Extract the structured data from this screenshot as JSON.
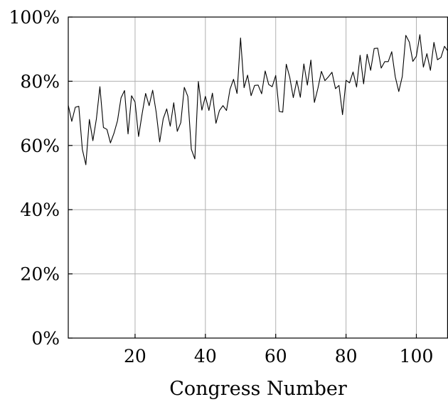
{
  "chart_data": {
    "type": "line",
    "title": "",
    "xlabel": "Congress Number",
    "ylabel": "",
    "xlim": [
      1,
      109
    ],
    "ylim": [
      0,
      100
    ],
    "grid": true,
    "x_ticks": [
      {
        "value": 20,
        "label": "20"
      },
      {
        "value": 40,
        "label": "40"
      },
      {
        "value": 60,
        "label": "60"
      },
      {
        "value": 80,
        "label": "80"
      },
      {
        "value": 100,
        "label": "100"
      }
    ],
    "y_ticks": [
      {
        "value": 0,
        "label": "0%"
      },
      {
        "value": 20,
        "label": "20%"
      },
      {
        "value": 40,
        "label": "40%"
      },
      {
        "value": 60,
        "label": "60%"
      },
      {
        "value": 80,
        "label": "80%"
      },
      {
        "value": 100,
        "label": "100%"
      }
    ],
    "series": [
      {
        "line_color": "#000000",
        "x": [
          1,
          2,
          3,
          4,
          5,
          6,
          7,
          8,
          9,
          10,
          11,
          12,
          13,
          14,
          15,
          16,
          17,
          18,
          19,
          20,
          21,
          22,
          23,
          24,
          25,
          26,
          27,
          28,
          29,
          30,
          31,
          32,
          33,
          34,
          35,
          36,
          37,
          38,
          39,
          40,
          41,
          42,
          43,
          44,
          45,
          46,
          47,
          48,
          49,
          50,
          51,
          52,
          53,
          54,
          55,
          56,
          57,
          58,
          59,
          60,
          61,
          62,
          63,
          64,
          65,
          66,
          67,
          68,
          69,
          70,
          71,
          72,
          73,
          74,
          75,
          76,
          77,
          78,
          79,
          80,
          81,
          82,
          83,
          84,
          85,
          86,
          87,
          88,
          89,
          90,
          91,
          92,
          93,
          94,
          95,
          96,
          97,
          98,
          99,
          100,
          101,
          102,
          103,
          104,
          105,
          106,
          107,
          108,
          109
        ],
        "values": [
          72.5,
          67.5,
          71.9,
          72.2,
          58.8,
          54.0,
          68.1,
          61.5,
          68.3,
          78.3,
          65.6,
          65.0,
          60.8,
          63.8,
          67.7,
          74.8,
          77.1,
          63.6,
          75.5,
          73.5,
          62.8,
          69.8,
          76.2,
          72.4,
          77.2,
          70.4,
          61.1,
          68.3,
          71.4,
          66.0,
          73.3,
          64.4,
          67.1,
          78.1,
          75.3,
          58.8,
          55.8,
          79.9,
          71.0,
          75.3,
          70.9,
          76.3,
          66.9,
          70.9,
          72.4,
          70.9,
          77.5,
          80.6,
          76.2,
          93.5,
          78.0,
          81.9,
          75.5,
          78.7,
          78.8,
          76.1,
          83.2,
          79.0,
          78.3,
          81.8,
          70.6,
          70.4,
          85.3,
          81.2,
          74.9,
          80.2,
          75.0,
          85.4,
          78.8,
          86.6,
          73.4,
          77.8,
          83.1,
          80.2,
          81.4,
          82.8,
          77.7,
          78.7,
          69.6,
          80.3,
          79.5,
          82.9,
          78.2,
          88.1,
          79.2,
          88.4,
          83.4,
          90.2,
          90.3,
          84.1,
          86.1,
          86.1,
          89.2,
          81.4,
          76.8,
          81.5,
          94.3,
          92.2,
          86.2,
          87.8,
          94.5,
          84.4,
          88.6,
          83.4,
          92.1,
          86.7,
          87.4,
          90.9,
          89.3
        ]
      }
    ]
  }
}
